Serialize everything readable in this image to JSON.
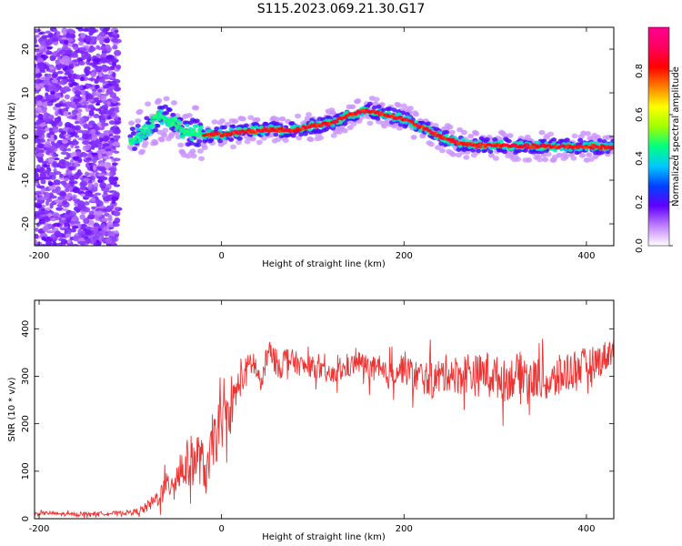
{
  "title": "S115.2023.069.21.30.G17",
  "chart_data": [
    {
      "type": "heatmap",
      "xlabel": "Height of straight line (km)",
      "ylabel": "Frequency (Hz)",
      "xlim": [
        -205,
        430
      ],
      "ylim": [
        -25,
        25
      ],
      "xticks": [
        -200,
        0,
        200,
        400
      ],
      "yticks": [
        -20,
        -10,
        0,
        10,
        20
      ],
      "colorbar": {
        "label": "Normalized spectral amplitude",
        "range": [
          0,
          1
        ],
        "ticks": [
          0.0,
          0.2,
          0.4,
          0.6,
          0.8
        ],
        "colors": [
          "#ffffff",
          "#c080ff",
          "#6000ff",
          "#0040ff",
          "#00c8ff",
          "#00ff80",
          "#a0ff00",
          "#ffff00",
          "#ff8000",
          "#ff0000",
          "#ff0060",
          "#ff0090"
        ]
      },
      "noise_region": {
        "x": [
          -205,
          -113
        ],
        "y": [
          -25,
          25
        ],
        "amplitude": 0.15
      },
      "ridge": {
        "x": [
          -100,
          -90,
          -80,
          -70,
          -60,
          -50,
          -40,
          -30,
          -20,
          0,
          20,
          50,
          80,
          100,
          120,
          140,
          160,
          180,
          200,
          220,
          240,
          260,
          280,
          300,
          330,
          360,
          400,
          430
        ],
        "frequency": [
          -1,
          0.5,
          2,
          5,
          4,
          3,
          1,
          1,
          0.5,
          0.5,
          1,
          1.5,
          1.5,
          2.5,
          3,
          5,
          6,
          5,
          4,
          2,
          0,
          -1.5,
          -2,
          -2,
          -2.2,
          -2.3,
          -2.3,
          -2.5
        ],
        "peak_amplitude": 0.9
      }
    },
    {
      "type": "line",
      "xlabel": "Height of straight line (km)",
      "ylabel": "SNR (10 * v/v)",
      "xlim": [
        -205,
        430
      ],
      "ylim": [
        0,
        460
      ],
      "xticks": [
        -200,
        0,
        200,
        400
      ],
      "yticks": [
        0,
        100,
        200,
        300,
        400
      ],
      "color": "#ee3333",
      "x": [
        -205,
        -190,
        -170,
        -150,
        -130,
        -110,
        -95,
        -85,
        -75,
        -65,
        -55,
        -45,
        -35,
        -25,
        -20,
        -15,
        -10,
        -5,
        0,
        5,
        10,
        15,
        20,
        25,
        30,
        35,
        40,
        45,
        50,
        55,
        60,
        65,
        70,
        80,
        90,
        100,
        110,
        120,
        130,
        140,
        150,
        160,
        170,
        180,
        190,
        200,
        210,
        220,
        230,
        240,
        250,
        260,
        270,
        280,
        290,
        300,
        310,
        320,
        330,
        340,
        350,
        360,
        370,
        380,
        390,
        400,
        410,
        420,
        430
      ],
      "y": [
        10,
        12,
        9,
        10,
        11,
        12,
        14,
        20,
        35,
        55,
        80,
        100,
        120,
        130,
        110,
        90,
        160,
        180,
        200,
        210,
        230,
        260,
        290,
        300,
        320,
        330,
        300,
        280,
        350,
        340,
        330,
        320,
        340,
        330,
        320,
        320,
        310,
        300,
        310,
        320,
        330,
        320,
        310,
        300,
        310,
        320,
        300,
        300,
        290,
        300,
        310,
        300,
        310,
        300,
        310,
        300,
        290,
        300,
        310,
        290,
        300,
        280,
        300,
        310,
        320,
        320,
        330,
        340,
        360
      ],
      "noise_amplitude": [
        4,
        4,
        4,
        4,
        4,
        4,
        6,
        10,
        15,
        25,
        35,
        45,
        55,
        55,
        50,
        50,
        60,
        60,
        55,
        45,
        40,
        40,
        35,
        35,
        30,
        30,
        30,
        30,
        30,
        30,
        28,
        28,
        25,
        25,
        22,
        22,
        20,
        20,
        22,
        22,
        25,
        25,
        30,
        30,
        30,
        35,
        35,
        35,
        40,
        40,
        40,
        40,
        45,
        45,
        45,
        45,
        45,
        45,
        45,
        45,
        45,
        45,
        45,
        45,
        40,
        40,
        35,
        35,
        30
      ]
    }
  ]
}
